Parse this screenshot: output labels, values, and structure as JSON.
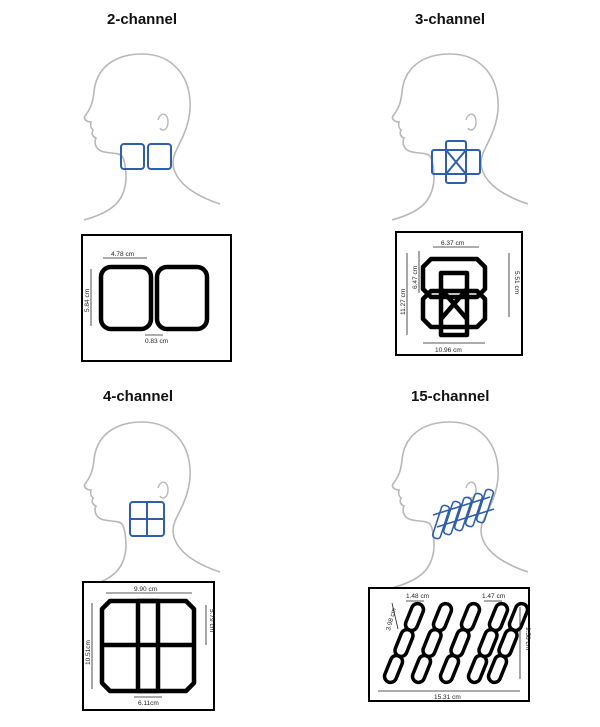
{
  "panels": [
    {
      "title": "2-channel",
      "dims": {
        "width": "4.78 cm",
        "height": "5.84 cm",
        "gap": "0.83 cm"
      }
    },
    {
      "title": "3-channel",
      "dims": {
        "top": "6.37 cm",
        "left_outer": "11.27 cm",
        "left_inner": "6.47 cm",
        "right": "5.51 cm",
        "bottom": "10.96 cm"
      }
    },
    {
      "title": "4-channel",
      "dims": {
        "top": "9.90 cm",
        "left": "10.51cm",
        "right": "5.79 cm",
        "bottom": "6.11cm"
      }
    },
    {
      "title": "15-channel",
      "dims": {
        "top_left": "1.48 cm",
        "top_right": "1.47 cm",
        "left": "3.98 cm",
        "right": "9.58 cm",
        "bottom": "15.31 cm"
      }
    }
  ],
  "colors": {
    "coil_blue": "#2f5fa8",
    "outline": "#000000",
    "head_line": "#b8b8b8"
  }
}
